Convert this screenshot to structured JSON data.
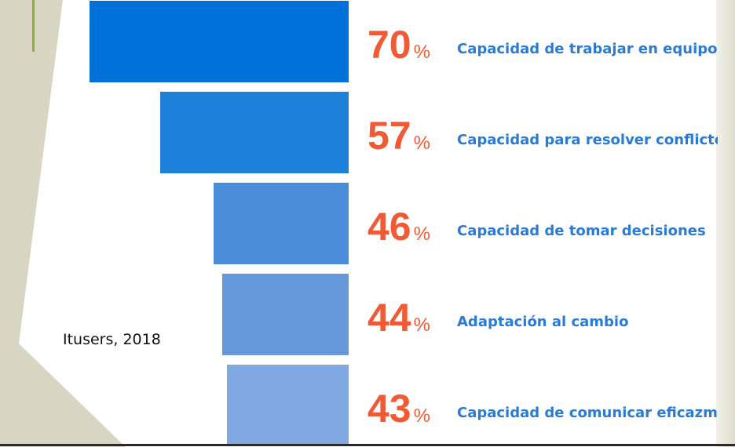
{
  "source": "Itusers, 2018",
  "colors": {
    "percent": "#f05a35",
    "label": "#2a7bd6",
    "bars": [
      "#0070d9",
      "#1d80d9",
      "#4a8cd8",
      "#6698dc",
      "#80a8e1"
    ]
  },
  "chart_data": {
    "type": "bar",
    "orientation": "horizontal-funnel",
    "categories": [
      "Capacidad de trabajar en equipo",
      "Capacidad para resolver conflictos",
      "Capacidad de tomar decisiones",
      "Adaptación al cambio",
      "Capacidad de comunicar eficazme"
    ],
    "values": [
      70,
      57,
      46,
      44,
      43
    ],
    "value_labels": [
      "70",
      "57",
      "46",
      "44",
      "43"
    ],
    "unit": "%",
    "title": "",
    "xlabel": "",
    "ylabel": ""
  }
}
